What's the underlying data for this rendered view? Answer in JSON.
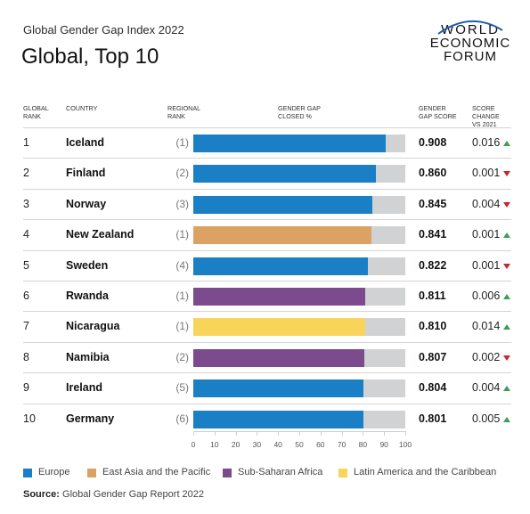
{
  "header": {
    "subtitle": "Global Gender Gap Index 2022",
    "title": "Global, Top 10"
  },
  "logo": {
    "line1": "WORLD",
    "line2": "ECONOMIC",
    "line3": "FORUM"
  },
  "columns": {
    "rank": "GLOBAL\nRANK",
    "country": "COUNTRY",
    "regional_rank": "REGIONAL\nRANK",
    "closed": "GENDER GAP\nCLOSED %",
    "score": "GENDER\nGAP SCORE",
    "change": "SCORE\nCHANGE\nVS 2021"
  },
  "colors": {
    "Europe": "#1a7fc5",
    "East Asia and the Pacific": "#dba264",
    "Sub-Saharan Africa": "#7b4b8d",
    "Latin America and the Caribbean": "#f8d45b",
    "remainder": "#d1d2d4",
    "up": "#3e9e54",
    "down": "#c6282e"
  },
  "chart_data": {
    "type": "bar",
    "title": "Global, Top 10",
    "xlim": [
      0,
      100
    ],
    "xticks": [
      "0",
      "10",
      "20",
      "30",
      "40",
      "50",
      "60",
      "70",
      "80",
      "90",
      "100"
    ],
    "categories": [
      "Iceland",
      "Finland",
      "Norway",
      "New Zealand",
      "Sweden",
      "Rwanda",
      "Nicaragua",
      "Namibia",
      "Ireland",
      "Germany"
    ],
    "values": [
      90.8,
      86.0,
      84.5,
      84.1,
      82.2,
      81.1,
      81.0,
      80.7,
      80.4,
      80.1
    ],
    "rows": [
      {
        "rank": "1",
        "country": "Iceland",
        "regional": "(1)",
        "region": "Europe",
        "closed": 90.8,
        "score": "0.908",
        "change": "0.016",
        "dir": "up"
      },
      {
        "rank": "2",
        "country": "Finland",
        "regional": "(2)",
        "region": "Europe",
        "closed": 86.0,
        "score": "0.860",
        "change": "0.001",
        "dir": "down"
      },
      {
        "rank": "3",
        "country": "Norway",
        "regional": "(3)",
        "region": "Europe",
        "closed": 84.5,
        "score": "0.845",
        "change": "0.004",
        "dir": "down"
      },
      {
        "rank": "4",
        "country": "New Zealand",
        "regional": "(1)",
        "region": "East Asia and the Pacific",
        "closed": 84.1,
        "score": "0.841",
        "change": "0.001",
        "dir": "up"
      },
      {
        "rank": "5",
        "country": "Sweden",
        "regional": "(4)",
        "region": "Europe",
        "closed": 82.2,
        "score": "0.822",
        "change": "0.001",
        "dir": "down"
      },
      {
        "rank": "6",
        "country": "Rwanda",
        "regional": "(1)",
        "region": "Sub-Saharan Africa",
        "closed": 81.1,
        "score": "0.811",
        "change": "0.006",
        "dir": "up"
      },
      {
        "rank": "7",
        "country": "Nicaragua",
        "regional": "(1)",
        "region": "Latin America and the Caribbean",
        "closed": 81.0,
        "score": "0.810",
        "change": "0.014",
        "dir": "up"
      },
      {
        "rank": "8",
        "country": "Namibia",
        "regional": "(2)",
        "region": "Sub-Saharan Africa",
        "closed": 80.7,
        "score": "0.807",
        "change": "0.002",
        "dir": "down"
      },
      {
        "rank": "9",
        "country": "Ireland",
        "regional": "(5)",
        "region": "Europe",
        "closed": 80.4,
        "score": "0.804",
        "change": "0.004",
        "dir": "up"
      },
      {
        "rank": "10",
        "country": "Germany",
        "regional": "(6)",
        "region": "Europe",
        "closed": 80.1,
        "score": "0.801",
        "change": "0.005",
        "dir": "up"
      }
    ],
    "legend": [
      "Europe",
      "East Asia and the Pacific",
      "Sub-Saharan Africa",
      "Latin America and the Caribbean"
    ],
    "legend_position": "bottom"
  },
  "source": {
    "label": "Source:",
    "text": "Global Gender Gap Report 2022"
  }
}
